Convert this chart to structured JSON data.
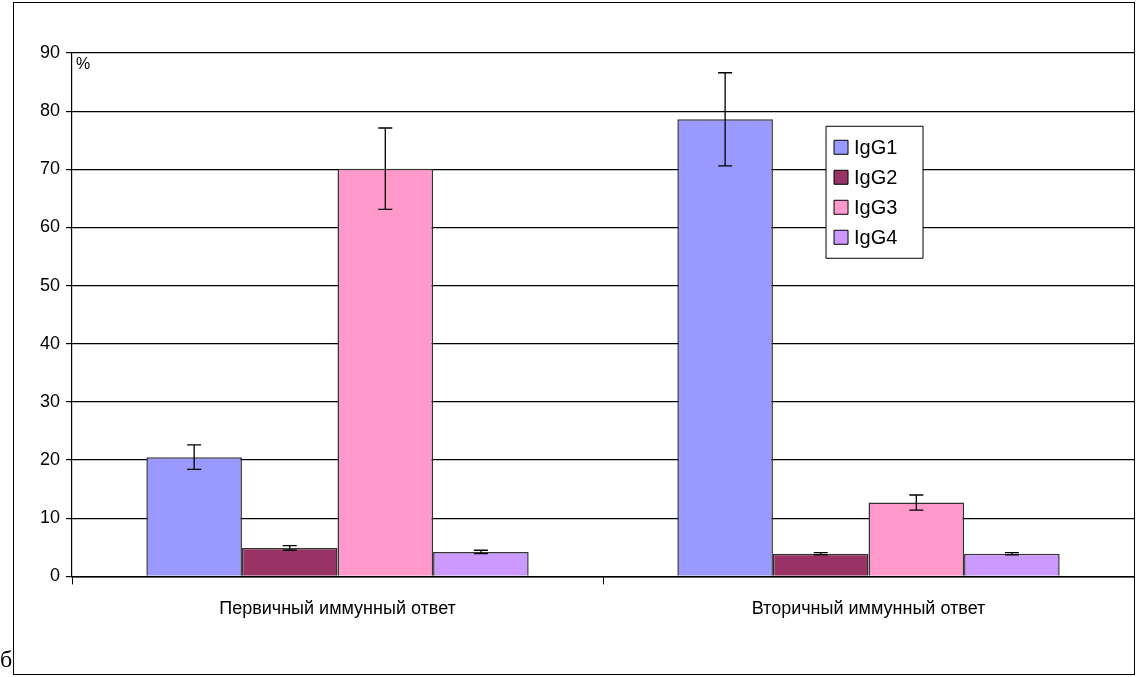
{
  "chart_data": {
    "type": "bar",
    "ylabel": "%",
    "annotations": [
      "б"
    ],
    "categories": [
      "Первичный иммунный ответ",
      "Вторичный иммунный ответ"
    ],
    "series": [
      {
        "name": "IgG1",
        "color": "#9999ff",
        "values": [
          20.5,
          78.6
        ],
        "errors": [
          2.1,
          8
        ]
      },
      {
        "name": "IgG2",
        "color": "#993366",
        "values": [
          4.9,
          3.9
        ],
        "errors": [
          0.4,
          0.2
        ]
      },
      {
        "name": "IgG3",
        "color": "#ff99cc",
        "values": [
          70.1,
          12.7
        ],
        "errors": [
          7,
          1.3
        ]
      },
      {
        "name": "IgG4",
        "color": "#cc99ff",
        "values": [
          4.2,
          3.9
        ],
        "errors": [
          0.3,
          0.2
        ]
      }
    ],
    "ylim": [
      0,
      90
    ],
    "yticks": [
      0,
      10,
      20,
      30,
      40,
      50,
      60,
      70,
      80,
      90
    ],
    "grid": "y",
    "legend": "right"
  }
}
